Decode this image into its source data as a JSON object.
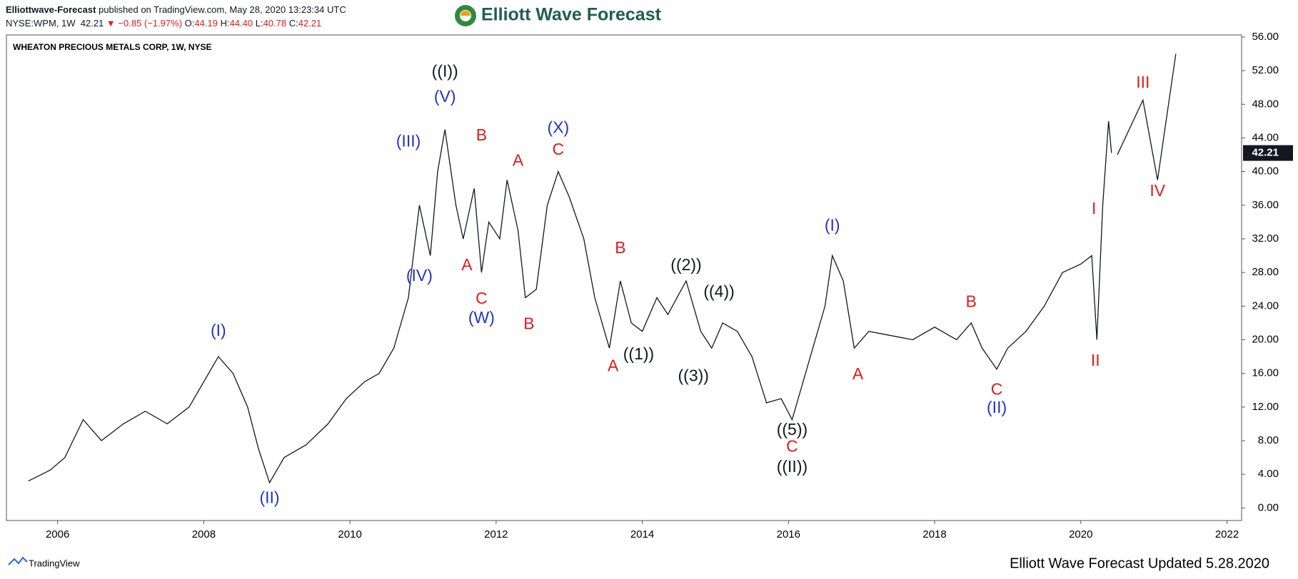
{
  "header": {
    "publisher": "Elliottwave-Forecast",
    "published": "published on TradingView.com, May 28, 2020 13:23:34 UTC",
    "symbol": "NYSE:WPM, 1W",
    "last": "42.21",
    "change": "▼ −0.85 (−1.97%)",
    "o_label": "O:",
    "o": "44.19",
    "h_label": "H:",
    "h": "44.40",
    "l_label": "L:",
    "l": "40.78",
    "c_label": "C:",
    "c": "42.21",
    "logo": "Elliott Wave Forecast"
  },
  "footer": {
    "platform": "TradingView",
    "note": "Elliott Wave Forecast Updated 5.28.2020"
  },
  "chart_data": {
    "type": "line",
    "title": "WHEATON PRECIOUS METALS CORP, 1W, NYSE",
    "color": "#131722",
    "x": [
      2005.6,
      2005.9,
      2006.1,
      2006.35,
      2006.6,
      2006.9,
      2007.2,
      2007.5,
      2007.8,
      2008.0,
      2008.2,
      2008.4,
      2008.6,
      2008.75,
      2008.9,
      2009.1,
      2009.4,
      2009.7,
      2009.95,
      2010.2,
      2010.4,
      2010.6,
      2010.8,
      2010.95,
      2011.1,
      2011.2,
      2011.3,
      2011.45,
      2011.55,
      2011.7,
      2011.8,
      2011.9,
      2012.05,
      2012.15,
      2012.3,
      2012.4,
      2012.55,
      2012.7,
      2012.85,
      2013.0,
      2013.2,
      2013.35,
      2013.45,
      2013.55,
      2013.7,
      2013.85,
      2014.0,
      2014.2,
      2014.35,
      2014.6,
      2014.8,
      2014.95,
      2015.1,
      2015.3,
      2015.5,
      2015.7,
      2015.9,
      2016.05,
      2016.3,
      2016.5,
      2016.6,
      2016.75,
      2016.9,
      2017.1,
      2017.4,
      2017.7,
      2018.0,
      2018.3,
      2018.5,
      2018.65,
      2018.85,
      2019.0,
      2019.25,
      2019.5,
      2019.75,
      2020.0,
      2020.15,
      2020.22,
      2020.3,
      2020.38,
      2020.42
    ],
    "values": [
      3.2,
      4.5,
      6,
      10.5,
      8,
      10,
      11.5,
      10,
      12,
      15,
      18,
      16,
      12,
      7,
      3,
      6,
      7.5,
      10,
      13,
      15,
      16,
      19,
      25,
      36,
      30,
      40,
      45,
      36,
      32,
      38,
      28,
      34,
      32,
      39,
      33,
      25,
      26,
      36,
      40,
      37,
      32,
      25,
      22,
      19,
      27,
      22,
      21,
      25,
      23,
      27,
      21,
      19,
      22,
      21,
      18,
      12.5,
      13,
      10.5,
      18,
      24,
      30,
      27,
      19,
      21,
      20.5,
      20,
      21.5,
      20,
      22,
      19,
      16.5,
      19,
      21,
      24,
      28,
      29,
      30,
      20,
      36,
      46,
      42.21
    ],
    "projection": {
      "x": [
        2020.5,
        2020.85,
        2021.05,
        2021.3
      ],
      "values": [
        42,
        48.5,
        39,
        54
      ]
    },
    "last_price": {
      "value": 42.21,
      "label": "42.21"
    },
    "xlim": [
      2005.3,
      2022.2
    ],
    "xticks": [
      2006,
      2008,
      2010,
      2012,
      2014,
      2016,
      2018,
      2020,
      2022
    ],
    "ylim": [
      -1.5,
      56.25
    ],
    "yticks": [
      {
        "value": 0,
        "label": "0.00"
      },
      {
        "value": 4,
        "label": "4.00"
      },
      {
        "value": 8,
        "label": "8.00"
      },
      {
        "value": 12,
        "label": "12.00"
      },
      {
        "value": 16,
        "label": "16.00"
      },
      {
        "value": 20,
        "label": "20.00"
      },
      {
        "value": 24,
        "label": "24.00"
      },
      {
        "value": 28,
        "label": "28.00"
      },
      {
        "value": 32,
        "label": "32.00"
      },
      {
        "value": 36,
        "label": "36.00"
      },
      {
        "value": 40,
        "label": "40.00"
      },
      {
        "value": 44,
        "label": "44.00"
      },
      {
        "value": 48,
        "label": "48.00"
      },
      {
        "value": 52,
        "label": "52.00"
      },
      {
        "value": 56,
        "label": "56.00"
      }
    ],
    "annotations": [
      {
        "text": "((I))",
        "x": 2011.3,
        "y": 51.8,
        "color": "#131722"
      },
      {
        "text": "(V)",
        "x": 2011.3,
        "y": 48.8,
        "color": "#1f35c4"
      },
      {
        "text": "(III)",
        "x": 2010.8,
        "y": 43.5,
        "color": "#1f35c4"
      },
      {
        "text": "(IV)",
        "x": 2010.95,
        "y": 27.5,
        "color": "#1f35c4"
      },
      {
        "text": "A",
        "x": 2011.6,
        "y": 28.8,
        "color": "#e01b1b"
      },
      {
        "text": "B",
        "x": 2011.8,
        "y": 44.2,
        "color": "#e01b1b"
      },
      {
        "text": "C",
        "x": 2011.8,
        "y": 24.8,
        "color": "#e01b1b"
      },
      {
        "text": "(W)",
        "x": 2011.8,
        "y": 22.5,
        "color": "#1f35c4"
      },
      {
        "text": "A",
        "x": 2012.3,
        "y": 41.2,
        "color": "#e01b1b"
      },
      {
        "text": "B",
        "x": 2012.45,
        "y": 21.8,
        "color": "#e01b1b"
      },
      {
        "text": "(X)",
        "x": 2012.85,
        "y": 45.1,
        "color": "#1f35c4"
      },
      {
        "text": "C",
        "x": 2012.85,
        "y": 42.5,
        "color": "#e01b1b"
      },
      {
        "text": "B",
        "x": 2013.7,
        "y": 30.8,
        "color": "#e01b1b"
      },
      {
        "text": "A",
        "x": 2013.6,
        "y": 16.8,
        "color": "#e01b1b"
      },
      {
        "text": "((1))",
        "x": 2013.95,
        "y": 18.2,
        "color": "#131722"
      },
      {
        "text": "((2))",
        "x": 2014.6,
        "y": 28.8,
        "color": "#131722"
      },
      {
        "text": "((4))",
        "x": 2015.05,
        "y": 25.6,
        "color": "#131722"
      },
      {
        "text": "((3))",
        "x": 2014.7,
        "y": 15.6,
        "color": "#131722"
      },
      {
        "text": "((5))",
        "x": 2016.05,
        "y": 9.2,
        "color": "#131722"
      },
      {
        "text": "C",
        "x": 2016.05,
        "y": 7.2,
        "color": "#e01b1b"
      },
      {
        "text": "((II))",
        "x": 2016.05,
        "y": 4.8,
        "color": "#131722"
      },
      {
        "text": "(I)",
        "x": 2008.2,
        "y": 21,
        "color": "#1f35c4"
      },
      {
        "text": "(II)",
        "x": 2008.9,
        "y": 1.1,
        "color": "#1f35c4"
      },
      {
        "text": "(I)",
        "x": 2016.6,
        "y": 33.5,
        "color": "#1f35c4"
      },
      {
        "text": "A",
        "x": 2016.95,
        "y": 15.8,
        "color": "#e01b1b"
      },
      {
        "text": "B",
        "x": 2018.5,
        "y": 24.4,
        "color": "#e01b1b"
      },
      {
        "text": "C",
        "x": 2018.85,
        "y": 14,
        "color": "#e01b1b"
      },
      {
        "text": "(II)",
        "x": 2018.85,
        "y": 11.8,
        "color": "#1f35c4"
      },
      {
        "text": "I",
        "x": 2020.18,
        "y": 35.5,
        "color": "#e01b1b"
      },
      {
        "text": "II",
        "x": 2020.2,
        "y": 17.4,
        "color": "#e01b1b"
      },
      {
        "text": "III",
        "x": 2020.85,
        "y": 50.5,
        "color": "#e01b1b"
      },
      {
        "text": "IV",
        "x": 2021.05,
        "y": 37.6,
        "color": "#e01b1b"
      }
    ]
  }
}
